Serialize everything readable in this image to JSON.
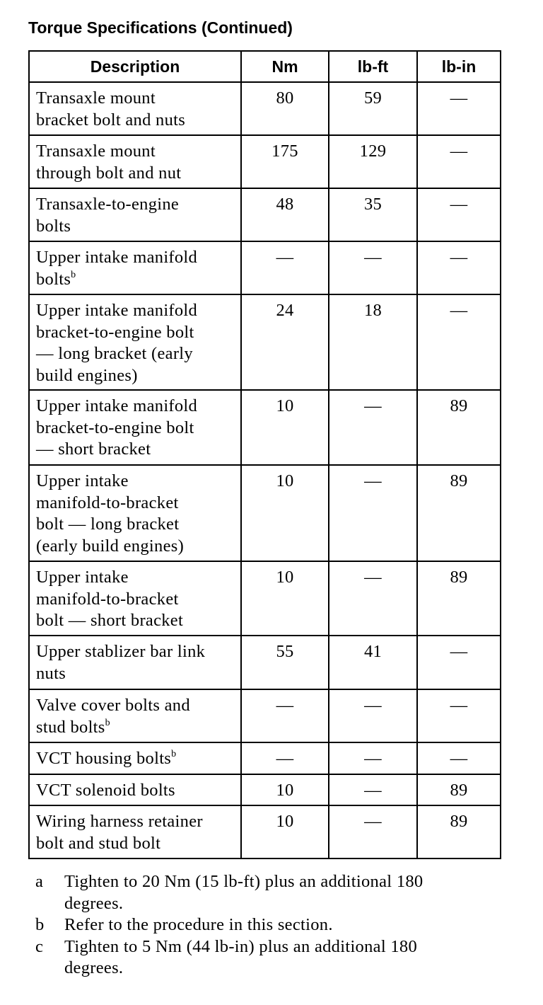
{
  "title": "Torque Specifications (Continued)",
  "headers": [
    "Description",
    "Nm",
    "lb-ft",
    "lb-in"
  ],
  "rows": [
    {
      "lines": [
        "Transaxle mount",
        "bracket bolt and nuts"
      ],
      "note": "",
      "nm": "80",
      "lbft": "59",
      "lbin": "—"
    },
    {
      "lines": [
        "Transaxle mount",
        "through bolt and nut"
      ],
      "note": "",
      "nm": "175",
      "lbft": "129",
      "lbin": "—"
    },
    {
      "lines": [
        "Transaxle-to-engine",
        "bolts"
      ],
      "note": "",
      "nm": "48",
      "lbft": "35",
      "lbin": "—"
    },
    {
      "lines": [
        "Upper intake manifold",
        "bolts"
      ],
      "note": "b",
      "nm": "—",
      "lbft": "—",
      "lbin": "—"
    },
    {
      "lines": [
        "Upper intake manifold",
        "bracket-to-engine bolt",
        "— long bracket (early",
        "build engines)"
      ],
      "note": "",
      "nm": "24",
      "lbft": "18",
      "lbin": "—"
    },
    {
      "lines": [
        "Upper intake manifold",
        "bracket-to-engine bolt",
        "— short bracket"
      ],
      "note": "",
      "nm": "10",
      "lbft": "—",
      "lbin": "89"
    },
    {
      "lines": [
        "Upper intake",
        "manifold-to-bracket",
        "bolt — long bracket",
        "(early build engines)"
      ],
      "note": "",
      "nm": "10",
      "lbft": "—",
      "lbin": "89"
    },
    {
      "lines": [
        "Upper intake",
        "manifold-to-bracket",
        "bolt — short bracket"
      ],
      "note": "",
      "nm": "10",
      "lbft": "—",
      "lbin": "89"
    },
    {
      "lines": [
        "Upper stablizer bar link",
        "nuts"
      ],
      "note": "",
      "nm": "55",
      "lbft": "41",
      "lbin": "—"
    },
    {
      "lines": [
        "Valve cover bolts and",
        "stud bolts"
      ],
      "note": "b",
      "nm": "—",
      "lbft": "—",
      "lbin": "—"
    },
    {
      "lines": [
        "VCT housing bolts"
      ],
      "note": "b",
      "nm": "—",
      "lbft": "—",
      "lbin": "—"
    },
    {
      "lines": [
        "VCT solenoid bolts"
      ],
      "note": "",
      "nm": "10",
      "lbft": "—",
      "lbin": "89"
    },
    {
      "lines": [
        "Wiring harness retainer",
        "bolt and stud bolt"
      ],
      "note": "",
      "nm": "10",
      "lbft": "—",
      "lbin": "89"
    }
  ],
  "footnotes": [
    {
      "key": "a",
      "lines": [
        "Tighten to 20 Nm (15 lb-ft) plus an additional 180",
        "degrees."
      ]
    },
    {
      "key": "b",
      "lines": [
        "Refer to the procedure in this section."
      ]
    },
    {
      "key": "c",
      "lines": [
        "Tighten to 5 Nm (44 lb-in) plus an additional 180",
        "degrees."
      ]
    }
  ]
}
